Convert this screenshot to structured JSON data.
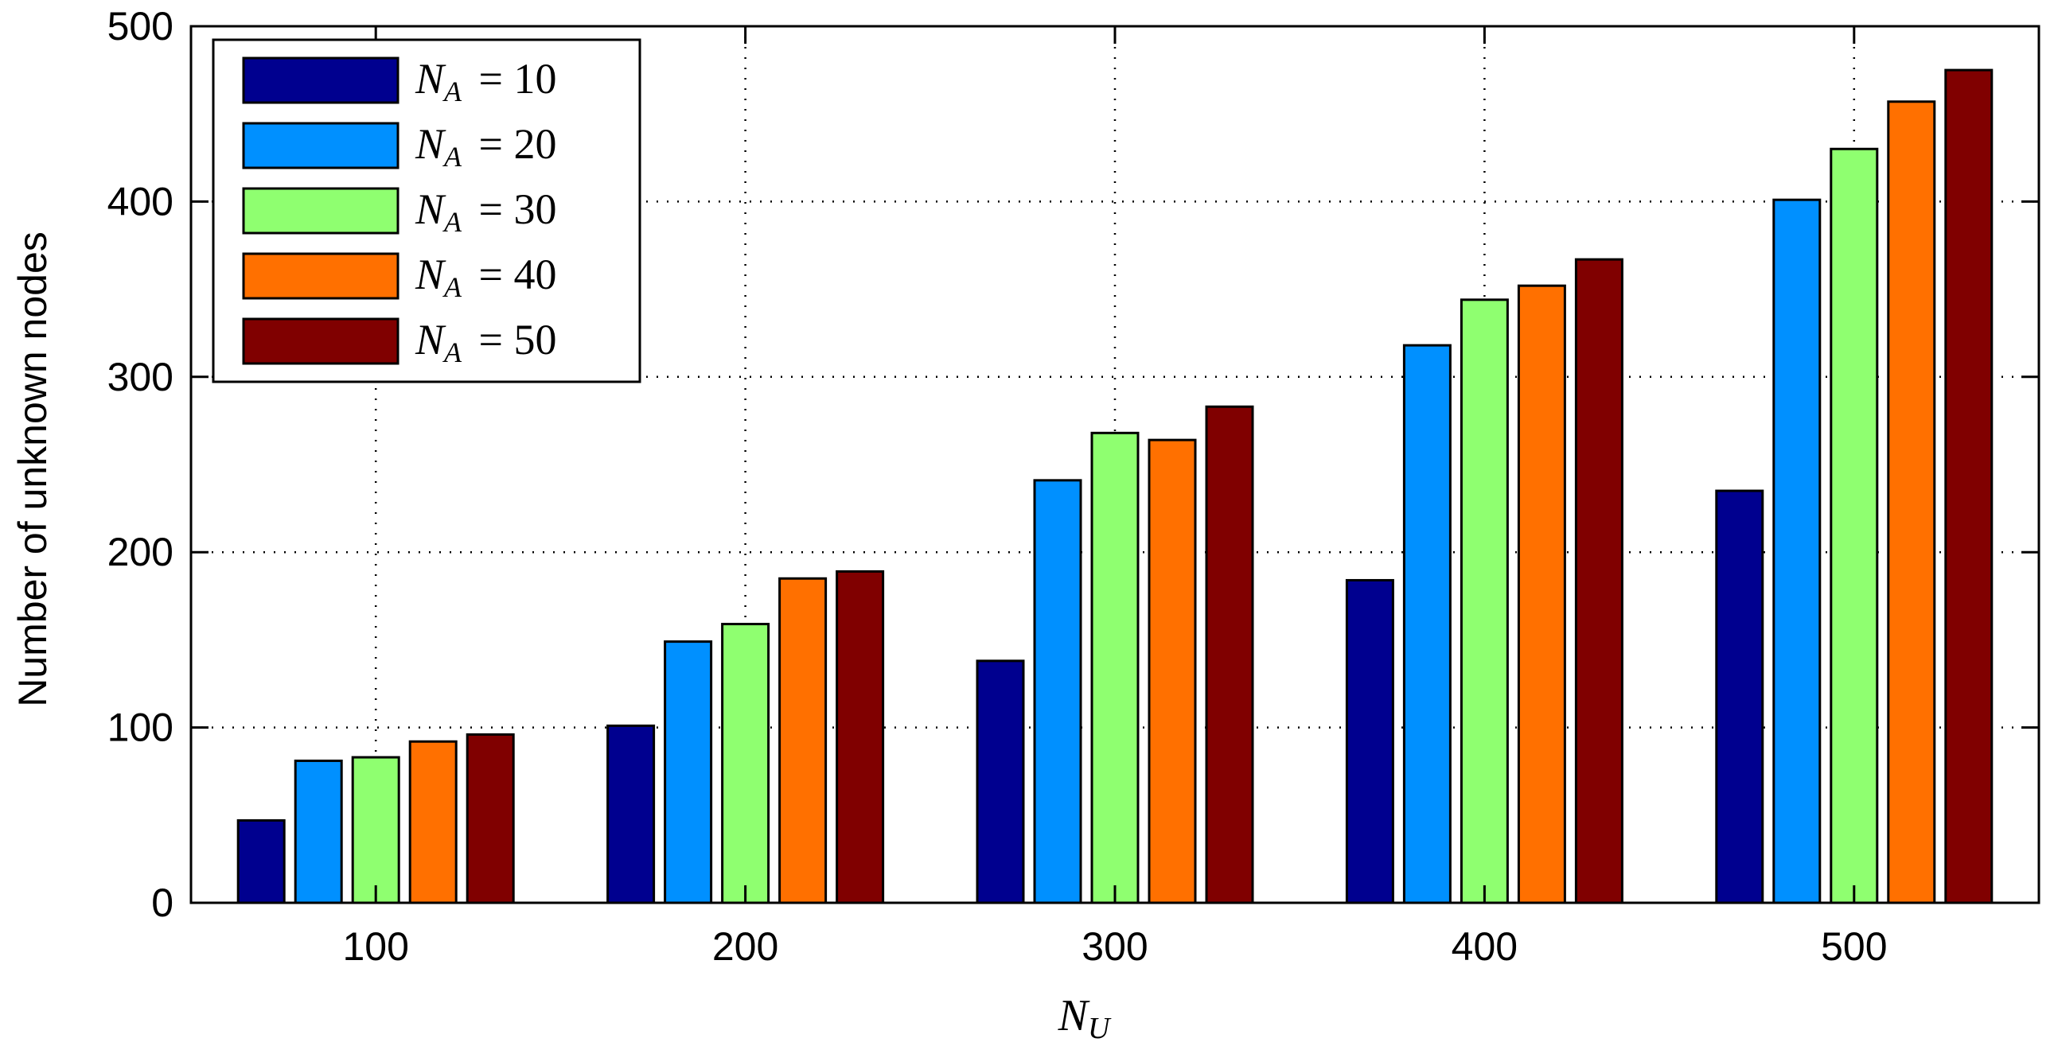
{
  "chart_data": {
    "type": "bar",
    "categories": [
      "100",
      "200",
      "300",
      "400",
      "500"
    ],
    "series": [
      {
        "name": "N_A = 10",
        "name_base": "N",
        "name_sub": "A",
        "name_value": "= 10",
        "color": "#00008f",
        "values": [
          47,
          101,
          138,
          184,
          235
        ]
      },
      {
        "name": "N_A = 20",
        "name_base": "N",
        "name_sub": "A",
        "name_value": "= 20",
        "color": "#0090ff",
        "values": [
          81,
          149,
          241,
          318,
          401
        ]
      },
      {
        "name": "N_A = 30",
        "name_base": "N",
        "name_sub": "A",
        "name_value": "= 30",
        "color": "#8fff70",
        "values": [
          83,
          159,
          268,
          344,
          430
        ]
      },
      {
        "name": "N_A = 40",
        "name_base": "N",
        "name_sub": "A",
        "name_value": "= 40",
        "color": "#ff7000",
        "values": [
          92,
          185,
          264,
          352,
          457
        ]
      },
      {
        "name": "N_A = 50",
        "name_base": "N",
        "name_sub": "A",
        "name_value": "= 50",
        "color": "#800000",
        "values": [
          96,
          189,
          283,
          367,
          475
        ]
      }
    ],
    "ylabel": "Number of unknown nodes",
    "xlabel": "N_U",
    "xlabel_base": "N",
    "xlabel_sub": "U",
    "ylim": [
      0,
      500
    ],
    "yticks": [
      0,
      100,
      200,
      300,
      400,
      500
    ],
    "grid": true,
    "legend_position": "top-left"
  }
}
